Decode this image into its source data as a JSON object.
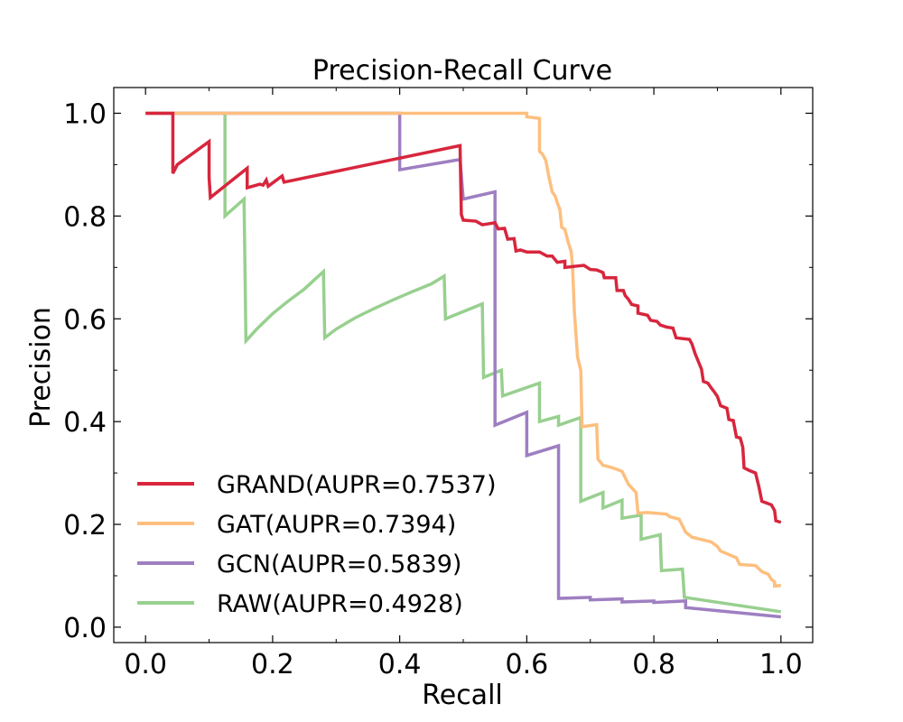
{
  "chart_data": {
    "type": "line",
    "title": "Precision-Recall Curve",
    "xlabel": "Recall",
    "ylabel": "Precision",
    "xlim": [
      -0.05,
      1.05
    ],
    "ylim": [
      -0.03,
      1.05
    ],
    "xticks": [
      "0.0",
      "0.2",
      "0.4",
      "0.6",
      "0.8",
      "1.0"
    ],
    "yticks": [
      "0.0",
      "0.2",
      "0.4",
      "0.6",
      "0.8",
      "1.0"
    ],
    "legend_position": "lower-left",
    "grid": false,
    "series": [
      {
        "name": "GRAND(AUPR=0.7537)",
        "color": "#d7263d",
        "points": [
          [
            0.0,
            1.0
          ],
          [
            0.043,
            1.0
          ],
          [
            0.043,
            0.883
          ],
          [
            0.05,
            0.9
          ],
          [
            0.1,
            0.945
          ],
          [
            0.1,
            0.875
          ],
          [
            0.102,
            0.836
          ],
          [
            0.16,
            0.893
          ],
          [
            0.16,
            0.855
          ],
          [
            0.18,
            0.862
          ],
          [
            0.185,
            0.86
          ],
          [
            0.19,
            0.87
          ],
          [
            0.193,
            0.858
          ],
          [
            0.215,
            0.878
          ],
          [
            0.218,
            0.866
          ],
          [
            0.495,
            0.937
          ],
          [
            0.497,
            0.803
          ],
          [
            0.5,
            0.792
          ],
          [
            0.52,
            0.79
          ],
          [
            0.53,
            0.783
          ],
          [
            0.55,
            0.787
          ],
          [
            0.555,
            0.775
          ],
          [
            0.565,
            0.776
          ],
          [
            0.57,
            0.755
          ],
          [
            0.58,
            0.756
          ],
          [
            0.583,
            0.732
          ],
          [
            0.59,
            0.734
          ],
          [
            0.6,
            0.73
          ],
          [
            0.62,
            0.73
          ],
          [
            0.632,
            0.722
          ],
          [
            0.64,
            0.722
          ],
          [
            0.648,
            0.71
          ],
          [
            0.66,
            0.712
          ],
          [
            0.66,
            0.7
          ],
          [
            0.69,
            0.704
          ],
          [
            0.7,
            0.696
          ],
          [
            0.71,
            0.695
          ],
          [
            0.72,
            0.69
          ],
          [
            0.722,
            0.68
          ],
          [
            0.74,
            0.68
          ],
          [
            0.742,
            0.655
          ],
          [
            0.752,
            0.655
          ],
          [
            0.755,
            0.645
          ],
          [
            0.76,
            0.638
          ],
          [
            0.765,
            0.628
          ],
          [
            0.775,
            0.625
          ],
          [
            0.775,
            0.611
          ],
          [
            0.79,
            0.607
          ],
          [
            0.795,
            0.597
          ],
          [
            0.805,
            0.595
          ],
          [
            0.81,
            0.588
          ],
          [
            0.82,
            0.584
          ],
          [
            0.83,
            0.582
          ],
          [
            0.835,
            0.563
          ],
          [
            0.856,
            0.56
          ],
          [
            0.86,
            0.551
          ],
          [
            0.865,
            0.532
          ],
          [
            0.87,
            0.517
          ],
          [
            0.875,
            0.502
          ],
          [
            0.878,
            0.478
          ],
          [
            0.885,
            0.475
          ],
          [
            0.89,
            0.466
          ],
          [
            0.895,
            0.458
          ],
          [
            0.9,
            0.449
          ],
          [
            0.905,
            0.431
          ],
          [
            0.915,
            0.426
          ],
          [
            0.918,
            0.404
          ],
          [
            0.925,
            0.402
          ],
          [
            0.93,
            0.37
          ],
          [
            0.936,
            0.368
          ],
          [
            0.94,
            0.35
          ],
          [
            0.942,
            0.31
          ],
          [
            0.95,
            0.305
          ],
          [
            0.96,
            0.3
          ],
          [
            0.965,
            0.275
          ],
          [
            0.97,
            0.245
          ],
          [
            0.985,
            0.238
          ],
          [
            0.99,
            0.227
          ],
          [
            0.992,
            0.207
          ],
          [
            1.0,
            0.204
          ]
        ]
      },
      {
        "name": "GAT(AUPR=0.7394)",
        "color": "#fdbf7f",
        "points": [
          [
            0.0,
            1.0
          ],
          [
            0.6,
            1.0
          ],
          [
            0.6,
            0.993
          ],
          [
            0.62,
            0.99
          ],
          [
            0.62,
            0.926
          ],
          [
            0.625,
            0.92
          ],
          [
            0.63,
            0.908
          ],
          [
            0.635,
            0.875
          ],
          [
            0.64,
            0.847
          ],
          [
            0.645,
            0.838
          ],
          [
            0.648,
            0.826
          ],
          [
            0.652,
            0.813
          ],
          [
            0.655,
            0.778
          ],
          [
            0.66,
            0.774
          ],
          [
            0.665,
            0.75
          ],
          [
            0.67,
            0.73
          ],
          [
            0.672,
            0.702
          ],
          [
            0.675,
            0.612
          ],
          [
            0.68,
            0.525
          ],
          [
            0.685,
            0.5
          ],
          [
            0.687,
            0.39
          ],
          [
            0.71,
            0.394
          ],
          [
            0.712,
            0.327
          ],
          [
            0.72,
            0.315
          ],
          [
            0.73,
            0.312
          ],
          [
            0.74,
            0.308
          ],
          [
            0.75,
            0.303
          ],
          [
            0.76,
            0.278
          ],
          [
            0.772,
            0.262
          ],
          [
            0.775,
            0.222
          ],
          [
            0.79,
            0.223
          ],
          [
            0.82,
            0.22
          ],
          [
            0.825,
            0.215
          ],
          [
            0.84,
            0.21
          ],
          [
            0.85,
            0.185
          ],
          [
            0.86,
            0.175
          ],
          [
            0.89,
            0.166
          ],
          [
            0.9,
            0.157
          ],
          [
            0.905,
            0.148
          ],
          [
            0.93,
            0.135
          ],
          [
            0.935,
            0.122
          ],
          [
            0.96,
            0.12
          ],
          [
            0.97,
            0.108
          ],
          [
            0.98,
            0.103
          ],
          [
            0.985,
            0.093
          ],
          [
            0.99,
            0.088
          ],
          [
            0.99,
            0.08
          ],
          [
            1.0,
            0.081
          ]
        ]
      },
      {
        "name": "GCN(AUPR=0.5839)",
        "color": "#9e7fc1",
        "points": [
          [
            0.0,
            1.0
          ],
          [
            0.4,
            1.0
          ],
          [
            0.4,
            0.89
          ],
          [
            0.495,
            0.91
          ],
          [
            0.5,
            0.833
          ],
          [
            0.55,
            0.847
          ],
          [
            0.55,
            0.393
          ],
          [
            0.6,
            0.418
          ],
          [
            0.6,
            0.334
          ],
          [
            0.65,
            0.353
          ],
          [
            0.65,
            0.056
          ],
          [
            0.7,
            0.058
          ],
          [
            0.7,
            0.053
          ],
          [
            0.75,
            0.055
          ],
          [
            0.75,
            0.049
          ],
          [
            0.8,
            0.051
          ],
          [
            0.8,
            0.048
          ],
          [
            0.85,
            0.051
          ],
          [
            0.85,
            0.038
          ],
          [
            1.0,
            0.02
          ]
        ]
      },
      {
        "name": "RAW(AUPR=0.4928)",
        "color": "#98d08f",
        "points": [
          [
            0.0,
            1.0
          ],
          [
            0.125,
            1.0
          ],
          [
            0.125,
            0.8
          ],
          [
            0.155,
            0.833
          ],
          [
            0.158,
            0.557
          ],
          [
            0.175,
            0.58
          ],
          [
            0.2,
            0.61
          ],
          [
            0.225,
            0.635
          ],
          [
            0.25,
            0.658
          ],
          [
            0.28,
            0.692
          ],
          [
            0.282,
            0.563
          ],
          [
            0.3,
            0.58
          ],
          [
            0.33,
            0.602
          ],
          [
            0.36,
            0.62
          ],
          [
            0.39,
            0.637
          ],
          [
            0.42,
            0.653
          ],
          [
            0.45,
            0.668
          ],
          [
            0.47,
            0.683
          ],
          [
            0.472,
            0.6
          ],
          [
            0.53,
            0.629
          ],
          [
            0.532,
            0.486
          ],
          [
            0.56,
            0.5
          ],
          [
            0.562,
            0.45
          ],
          [
            0.62,
            0.475
          ],
          [
            0.62,
            0.4
          ],
          [
            0.65,
            0.41
          ],
          [
            0.65,
            0.393
          ],
          [
            0.685,
            0.408
          ],
          [
            0.685,
            0.245
          ],
          [
            0.72,
            0.262
          ],
          [
            0.72,
            0.232
          ],
          [
            0.75,
            0.247
          ],
          [
            0.75,
            0.212
          ],
          [
            0.78,
            0.218
          ],
          [
            0.78,
            0.171
          ],
          [
            0.81,
            0.18
          ],
          [
            0.812,
            0.11
          ],
          [
            0.845,
            0.113
          ],
          [
            0.848,
            0.058
          ],
          [
            1.0,
            0.03
          ]
        ]
      }
    ]
  }
}
